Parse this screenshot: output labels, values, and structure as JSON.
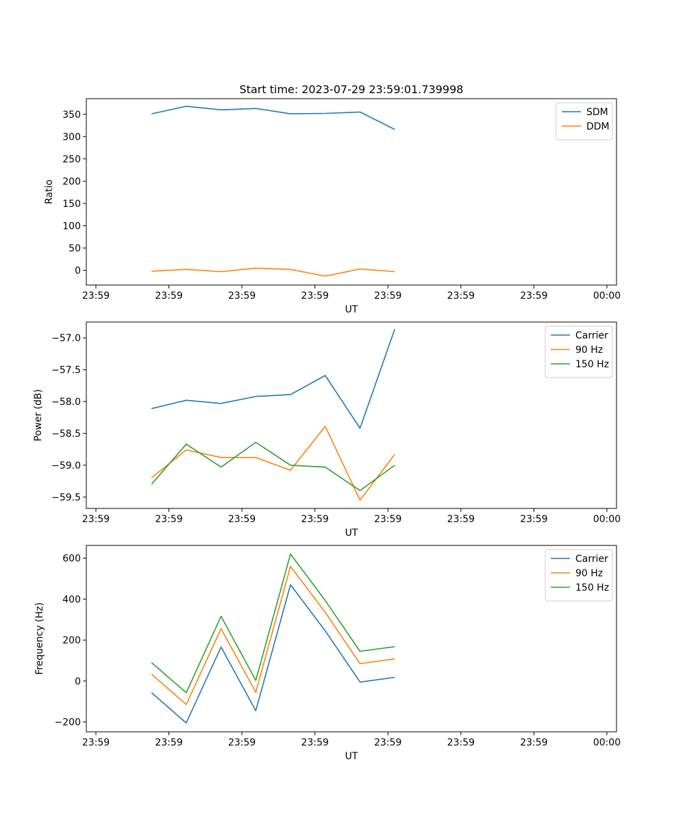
{
  "figure_title": "Start time: 2023-07-29 23:59:01.739998",
  "colors": {
    "blue": "#1f77b4",
    "orange": "#ff7f0e",
    "green": "#2ca02c"
  },
  "chart_data": [
    {
      "type": "line",
      "title": "Start time: 2023-07-29 23:59:01.739998",
      "xlabel": "UT",
      "ylabel": "Ratio",
      "x_tick_labels": [
        "23:59",
        "23:59",
        "23:59",
        "23:59",
        "23:59",
        "23:59",
        "23:59",
        "00:00"
      ],
      "x": [
        1,
        2,
        3,
        4,
        5,
        6,
        7,
        8
      ],
      "xlim": [
        0,
        9
      ],
      "x_ticks": [
        0,
        1.5,
        3,
        4.5,
        6,
        7.5,
        9,
        10.5
      ],
      "ylim": [
        -33,
        385
      ],
      "y_ticks": [
        0,
        50,
        100,
        150,
        200,
        250,
        300,
        350
      ],
      "y_tick_labels": [
        "0",
        "50",
        "100",
        "150",
        "200",
        "250",
        "300",
        "350"
      ],
      "legend": "top-right",
      "series": [
        {
          "name": "SDM",
          "color": "#1f77b4",
          "values": [
            351,
            368,
            360,
            363,
            351,
            352,
            355,
            316
          ]
        },
        {
          "name": "DDM",
          "color": "#ff7f0e",
          "values": [
            -2,
            2,
            -3,
            5,
            2,
            -13,
            3,
            -3
          ]
        }
      ]
    },
    {
      "type": "line",
      "title": "",
      "xlabel": "UT",
      "ylabel": "Power (dB)",
      "x_tick_labels": [
        "23:59",
        "23:59",
        "23:59",
        "23:59",
        "23:59",
        "23:59",
        "23:59",
        "00:00"
      ],
      "x": [
        1,
        2,
        3,
        4,
        5,
        6,
        7,
        8
      ],
      "xlim": [
        0,
        9
      ],
      "x_ticks": [
        0,
        1.5,
        3,
        4.5,
        6,
        7.5,
        9,
        10.5
      ],
      "ylim": [
        -59.68,
        -56.75
      ],
      "y_ticks": [
        -59.5,
        -59.0,
        -58.5,
        -58.0,
        -57.5,
        -57.0
      ],
      "y_tick_labels": [
        "−59.5",
        "−59.0",
        "−58.5",
        "−58.0",
        "−57.5",
        "−57.0"
      ],
      "legend": "top-right",
      "series": [
        {
          "name": "Carrier",
          "color": "#1f77b4",
          "values": [
            -58.11,
            -57.98,
            -58.03,
            -57.92,
            -57.89,
            -57.59,
            -58.42,
            -56.86
          ]
        },
        {
          "name": "90 Hz",
          "color": "#ff7f0e",
          "values": [
            -59.2,
            -58.76,
            -58.88,
            -58.88,
            -59.08,
            -58.39,
            -59.55,
            -58.83
          ]
        },
        {
          "name": "150 Hz",
          "color": "#2ca02c",
          "values": [
            -59.3,
            -58.67,
            -59.03,
            -58.64,
            -59.0,
            -59.03,
            -59.4,
            -59.0
          ]
        }
      ]
    },
    {
      "type": "line",
      "title": "",
      "xlabel": "UT",
      "ylabel": "Frequency (Hz)",
      "x_tick_labels": [
        "23:59",
        "23:59",
        "23:59",
        "23:59",
        "23:59",
        "23:59",
        "23:59",
        "00:00"
      ],
      "x": [
        1,
        2,
        3,
        4,
        5,
        6,
        7,
        8
      ],
      "xlim": [
        0,
        9
      ],
      "x_ticks": [
        0,
        1.5,
        3,
        4.5,
        6,
        7.5,
        9,
        10.5
      ],
      "ylim": [
        -248,
        662
      ],
      "y_ticks": [
        -200,
        0,
        200,
        400,
        600
      ],
      "y_tick_labels": [
        "−200",
        "0",
        "200",
        "400",
        "600"
      ],
      "legend": "top-right",
      "series": [
        {
          "name": "Carrier",
          "color": "#1f77b4",
          "values": [
            -57,
            -205,
            166,
            -145,
            470,
            245,
            -5,
            18
          ]
        },
        {
          "name": "90 Hz",
          "color": "#ff7f0e",
          "values": [
            33,
            -115,
            256,
            -55,
            560,
            335,
            85,
            108
          ]
        },
        {
          "name": "150 Hz",
          "color": "#2ca02c",
          "values": [
            90,
            -57,
            316,
            3,
            620,
            393,
            145,
            168
          ]
        }
      ]
    }
  ]
}
